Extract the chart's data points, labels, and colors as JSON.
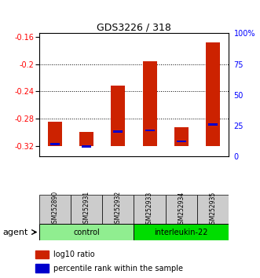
{
  "title": "GDS3226 / 318",
  "samples": [
    "GSM252890",
    "GSM252931",
    "GSM252932",
    "GSM252933",
    "GSM252934",
    "GSM252935"
  ],
  "log10_ratio": [
    -0.285,
    -0.3,
    -0.231,
    -0.196,
    -0.292,
    -0.168
  ],
  "pct_rank": [
    10.0,
    8.0,
    20.0,
    21.0,
    12.0,
    26.0
  ],
  "baseline": -0.32,
  "groups": [
    {
      "label": "control",
      "indices": [
        0,
        1,
        2
      ],
      "color": "#90EE90"
    },
    {
      "label": "interleukin-22",
      "indices": [
        3,
        4,
        5
      ],
      "color": "#00DD00"
    }
  ],
  "left_yticks": [
    -0.16,
    -0.2,
    -0.24,
    -0.28,
    -0.32
  ],
  "right_yticks": [
    100,
    75,
    50,
    25,
    0
  ],
  "ylim_left": [
    -0.335,
    -0.155
  ],
  "bar_color_red": "#CC2200",
  "bar_color_blue": "#0000CC",
  "agent_label": "agent",
  "legend_red": "log10 ratio",
  "legend_blue": "percentile rank within the sample",
  "sample_box_color": "#CCCCCC",
  "gridlines": [
    -0.2,
    -0.24,
    -0.28
  ]
}
